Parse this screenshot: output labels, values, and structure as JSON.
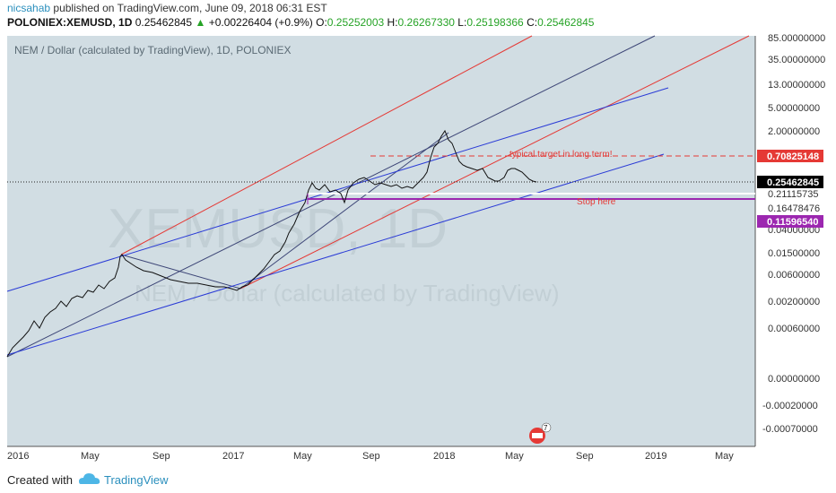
{
  "header": {
    "author": "nicsahab",
    "published": "published on TradingView.com, June 09, 2018 06:31 EST",
    "symbol": "POLONIEX:XEMUSD, 1D",
    "last": "0.25462845",
    "change": "+0.00226404 (+0.9%)",
    "o_label": "O:",
    "o": "0.25252003",
    "h_label": "H:",
    "h": "0.26267330",
    "l_label": "L:",
    "l": "0.25198366",
    "c_label": "C:",
    "c": "0.25462845"
  },
  "footer": {
    "created_with": "Created with",
    "brand": "TradingView"
  },
  "chart_data": {
    "type": "line",
    "title": "NEM / Dollar (calculated by TradingView), 1D, POLONIEX",
    "watermark": "XEMUSD, 1D",
    "watermark_sub": "NEM / Dollar (calculated by TradingView)",
    "y_ticks": [
      "85.00000000",
      "35.00000000",
      "13.00000000",
      "5.00000000",
      "2.00000000",
      "0.70825148",
      "0.25462845",
      "0.21115735",
      "0.16478476",
      "0.11596540",
      "0.04000000",
      "0.01500000",
      "0.00600000",
      "0.00200000",
      "0.00060000",
      "0.00000000",
      "-0.00020000",
      "-0.00070000"
    ],
    "x_ticks": [
      "2016",
      "May",
      "Sep",
      "2017",
      "May",
      "Sep",
      "2018",
      "May",
      "Sep",
      "2019",
      "May"
    ],
    "price_series": {
      "x": [
        "2016-01",
        "2016-03",
        "2016-05",
        "2016-06",
        "2016-08",
        "2016-10",
        "2016-12",
        "2017-01",
        "2017-03",
        "2017-04",
        "2017-05",
        "2017-06",
        "2017-07",
        "2017-08",
        "2017-09",
        "2017-11",
        "2018-01",
        "2018-02",
        "2018-03",
        "2018-04",
        "2018-05",
        "2018-06"
      ],
      "close": [
        0.0003,
        0.0009,
        0.004,
        0.012,
        0.008,
        0.006,
        0.0045,
        0.0045,
        0.01,
        0.02,
        0.2,
        0.25,
        0.18,
        0.22,
        0.3,
        0.22,
        1.7,
        0.45,
        0.28,
        0.22,
        0.45,
        0.25462845
      ]
    },
    "annotations": [
      {
        "text": "typical target in long term!",
        "color": "#e53935",
        "level": "0.70825148"
      },
      {
        "text": "Stop here",
        "color": "#e53935",
        "level": "0.11596540"
      }
    ],
    "badges": [
      {
        "value": "0.70825148",
        "color": "#e53935"
      },
      {
        "value": "0.25462845",
        "color": "#000000"
      },
      {
        "value": "0.11596540",
        "color": "#9c27b0"
      }
    ],
    "event_icon_count": "7",
    "colors": {
      "background": "#d1dde3",
      "red_channel": "#e53935",
      "blue_channel": "#2a3bd6",
      "navy": "#3d4677",
      "purple": "#9c27b0"
    },
    "scale": "log",
    "grid": false
  }
}
